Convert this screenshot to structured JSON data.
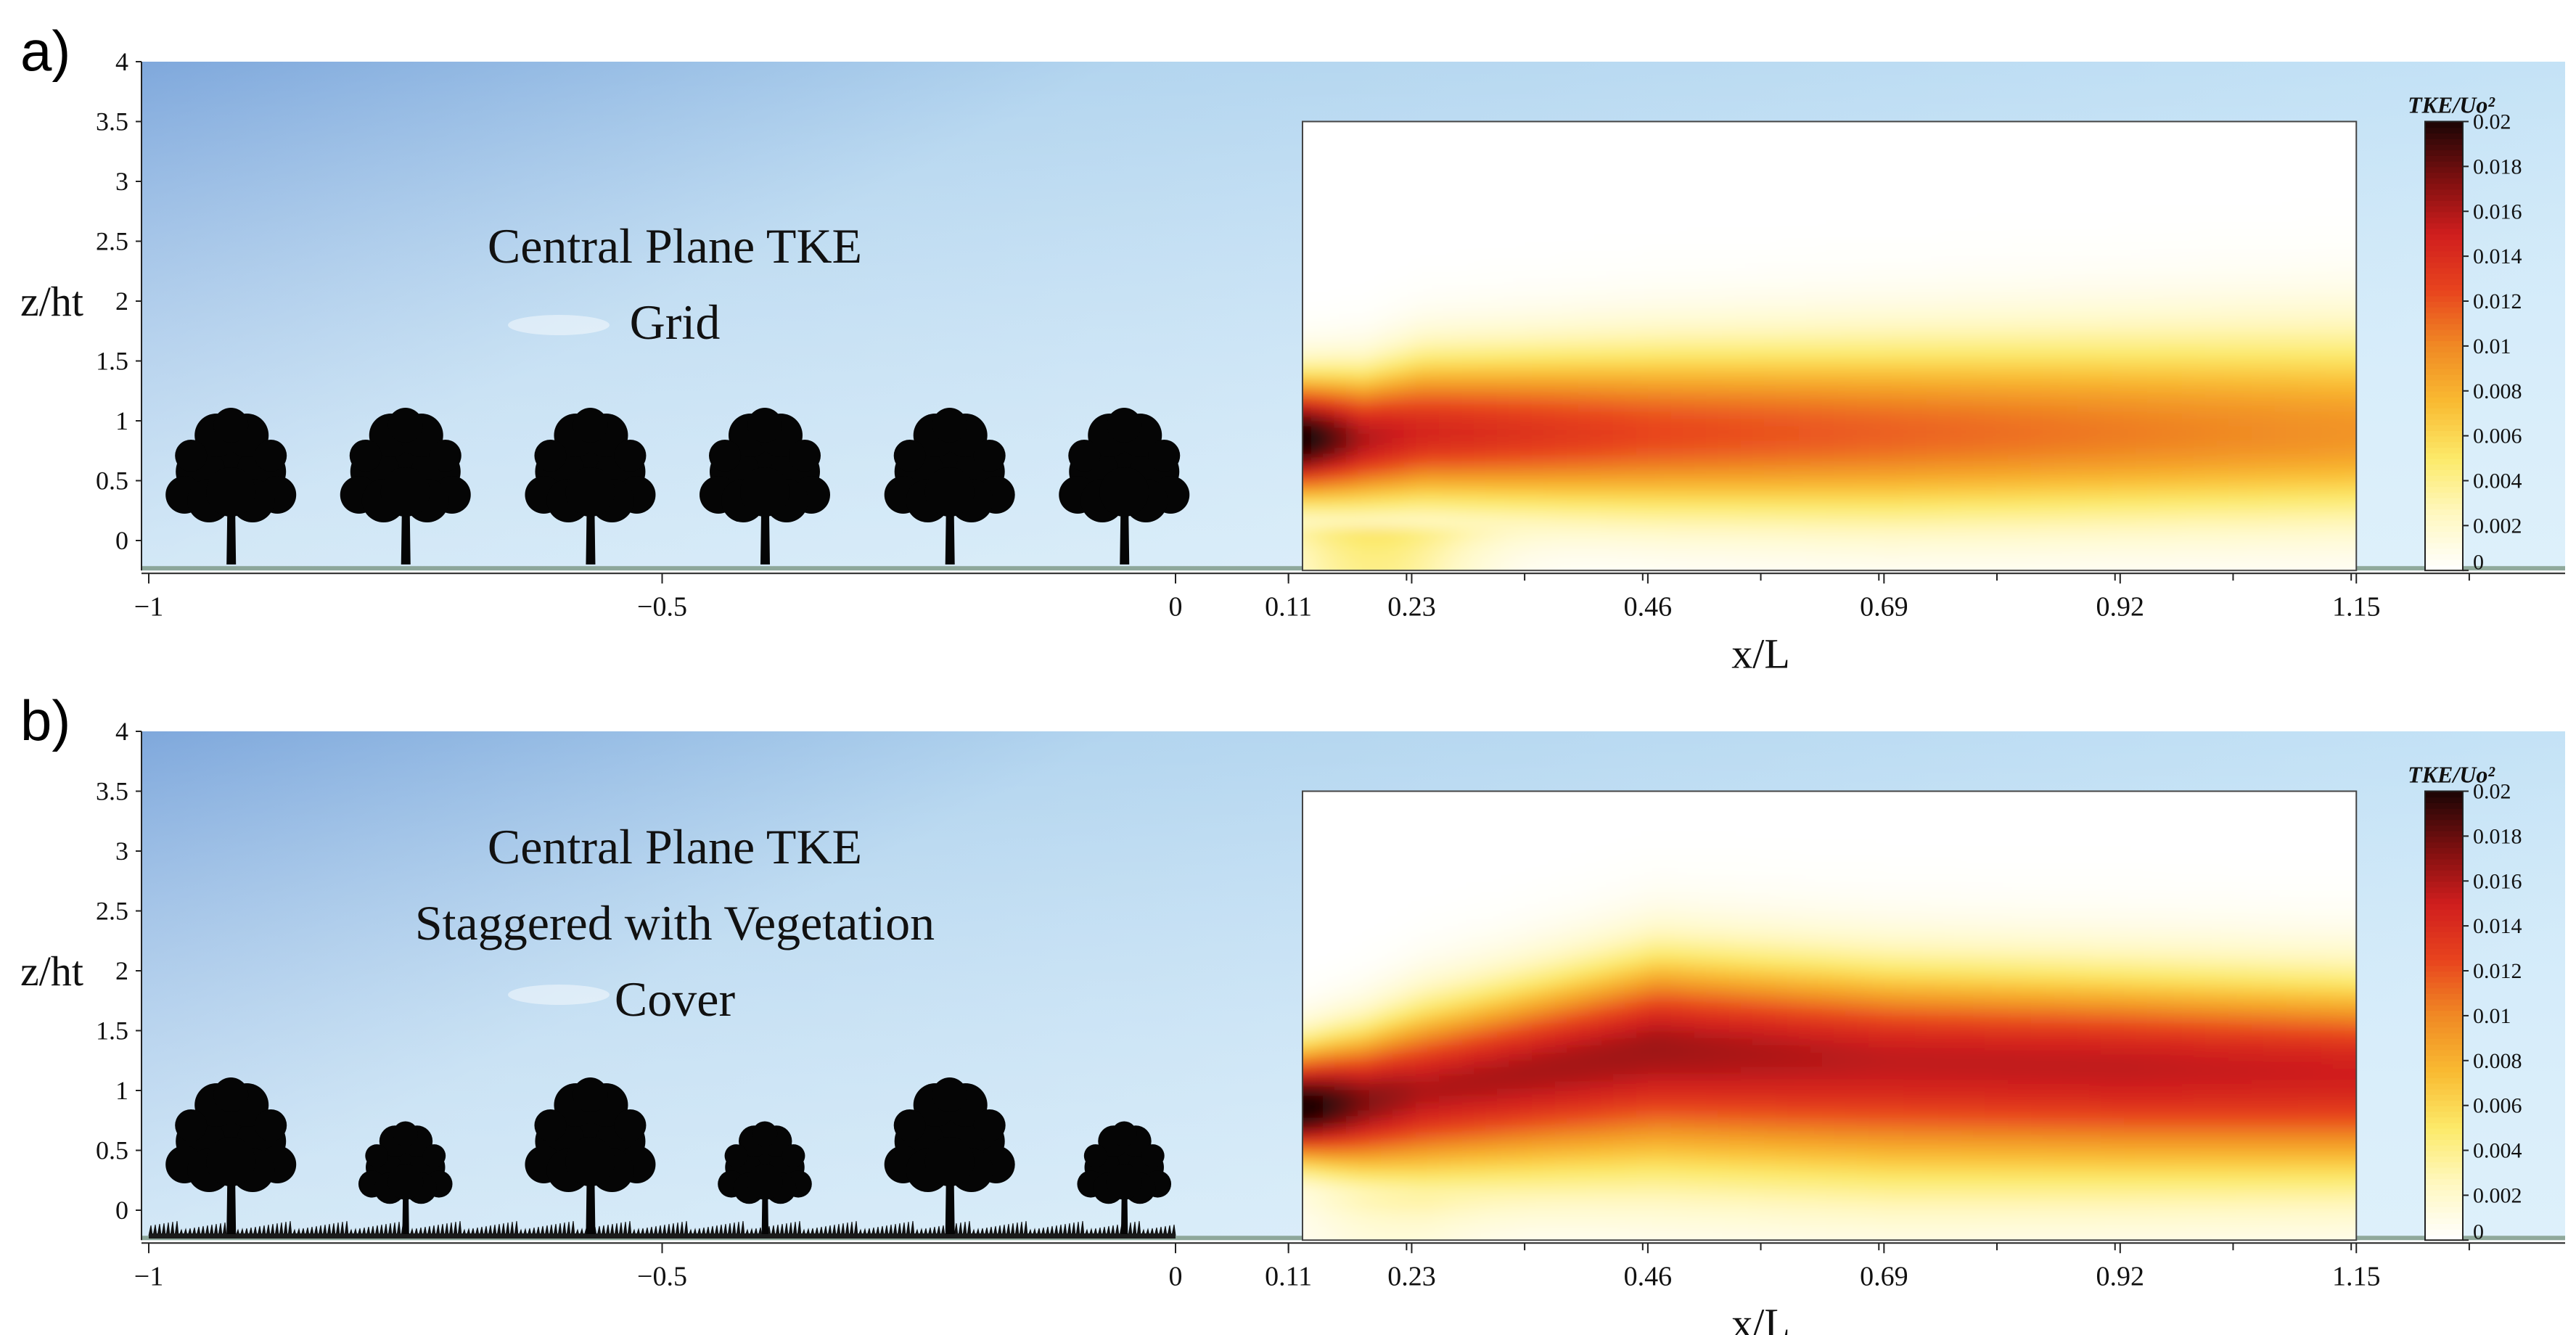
{
  "figure": {
    "panels": [
      {
        "letter": "a)",
        "title_lines": [
          "Central Plane TKE",
          "Grid"
        ],
        "arrangement": "grid",
        "tree_sizes": [
          "large",
          "large",
          "large",
          "large",
          "large",
          "large"
        ],
        "grass": false
      },
      {
        "letter": "b)",
        "title_lines": [
          "Central Plane TKE",
          "Staggered with Vegetation",
          "Cover"
        ],
        "arrangement": "staggered",
        "tree_sizes": [
          "large",
          "small",
          "large",
          "small",
          "large",
          "small"
        ],
        "grass": true
      }
    ]
  },
  "chart_data": [
    {
      "type": "heatmap",
      "title": "Central Plane TKE Grid",
      "xlabel": "x/L",
      "ylabel": "z/ht",
      "xlim": [
        -1,
        1.3
      ],
      "ylim": [
        -0.25,
        4
      ],
      "x_ticks": [
        "−1",
        "−0.5",
        "0",
        "0.11",
        "0.23",
        "0.46",
        "0.69",
        "0.92",
        "1.15"
      ],
      "y_ticks": [
        "0",
        "0.5",
        "1",
        "1.5",
        "2",
        "2.5",
        "3",
        "3.5",
        "4"
      ],
      "field_extent": {
        "x": [
          0.11,
          1.15
        ],
        "z": [
          -0.25,
          3.5
        ]
      },
      "colorbar": {
        "label": "TKE/Uo²",
        "range": [
          0,
          0.02
        ],
        "ticks": [
          "0",
          "0.002",
          "0.004",
          "0.006",
          "0.008",
          "0.01",
          "0.012",
          "0.014",
          "0.016",
          "0.018",
          "0.02"
        ],
        "colormap": [
          "#ffffff",
          "#fff8c2",
          "#fcea6a",
          "#f9bb32",
          "#f08a24",
          "#e8441e",
          "#d01e1e",
          "#7c0f0f",
          "#1c0505"
        ]
      },
      "tke_profile": {
        "x": [
          0.11,
          0.17,
          0.23,
          0.46,
          0.69,
          0.92,
          1.15
        ],
        "peak_z": [
          0.85,
          0.85,
          0.9,
          0.9,
          0.9,
          0.9,
          0.9
        ],
        "peak_tke": [
          0.021,
          0.016,
          0.0145,
          0.0125,
          0.0115,
          0.0105,
          0.0095
        ],
        "half_width_below": [
          0.55,
          0.6,
          0.65,
          0.75,
          0.8,
          0.8,
          0.8
        ],
        "half_width_above": [
          0.55,
          0.6,
          0.7,
          0.8,
          0.85,
          0.9,
          0.95
        ]
      },
      "trees": {
        "count": 6,
        "x": [
          -0.92,
          -0.75,
          -0.57,
          -0.4,
          -0.22,
          -0.05
        ]
      }
    },
    {
      "type": "heatmap",
      "title": "Central Plane TKE Staggered with Vegetation Cover",
      "xlabel": "x/L",
      "ylabel": "z/ht",
      "xlim": [
        -1,
        1.3
      ],
      "ylim": [
        -0.25,
        4
      ],
      "x_ticks": [
        "−1",
        "−0.5",
        "0",
        "0.11",
        "0.23",
        "0.46",
        "0.69",
        "0.92",
        "1.15"
      ],
      "y_ticks": [
        "0",
        "0.5",
        "1",
        "1.5",
        "2",
        "2.5",
        "3",
        "3.5",
        "4"
      ],
      "field_extent": {
        "x": [
          0.11,
          1.15
        ],
        "z": [
          -0.25,
          3.5
        ]
      },
      "colorbar": {
        "label": "TKE/Uo²",
        "range": [
          0,
          0.02
        ],
        "ticks": [
          "0",
          "0.002",
          "0.004",
          "0.006",
          "0.008",
          "0.01",
          "0.012",
          "0.014",
          "0.016",
          "0.018",
          "0.02"
        ],
        "colormap": [
          "#ffffff",
          "#fff8c2",
          "#fcea6a",
          "#f9bb32",
          "#f08a24",
          "#e8441e",
          "#d01e1e",
          "#7c0f0f",
          "#1c0505"
        ]
      },
      "tke_profile": {
        "x": [
          0.11,
          0.17,
          0.23,
          0.46,
          0.69,
          0.92,
          1.15
        ],
        "peak_z": [
          0.85,
          0.9,
          1.0,
          1.35,
          1.25,
          1.2,
          1.15
        ],
        "peak_tke": [
          0.021,
          0.0175,
          0.016,
          0.0165,
          0.0155,
          0.0155,
          0.015
        ],
        "half_width_below": [
          0.5,
          0.65,
          0.8,
          1.1,
          1.1,
          1.05,
          1.0
        ],
        "half_width_above": [
          0.55,
          0.65,
          0.75,
          0.85,
          0.85,
          0.85,
          0.85
        ]
      },
      "trees": {
        "count": 6,
        "x": [
          -0.92,
          -0.75,
          -0.57,
          -0.4,
          -0.22,
          -0.05
        ]
      }
    }
  ]
}
